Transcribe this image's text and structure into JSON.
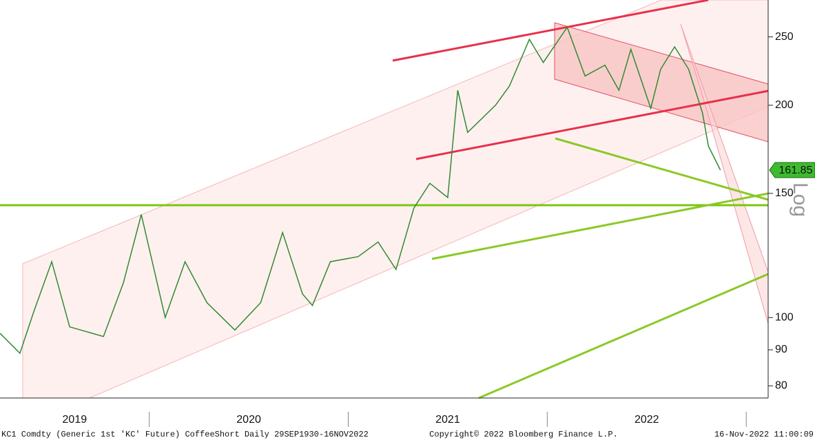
{
  "chart_data": {
    "type": "line",
    "series": [
      {
        "name": "KC1 Comdty",
        "color": "#2f8a2f",
        "x": [
          2019.25,
          2019.35,
          2019.42,
          2019.51,
          2019.6,
          2019.77,
          2019.87,
          2019.96,
          2020.08,
          2020.18,
          2020.29,
          2020.43,
          2020.56,
          2020.67,
          2020.77,
          2020.82,
          2020.91,
          2021.05,
          2021.15,
          2021.24,
          2021.33,
          2021.41,
          2021.5,
          2021.55,
          2021.6,
          2021.74,
          2021.81,
          2021.91,
          2021.98,
          2022.1,
          2022.19,
          2022.29,
          2022.36,
          2022.42,
          2022.52,
          2022.57,
          2022.64,
          2022.71,
          2022.78,
          2022.81,
          2022.87
        ],
        "values": [
          95,
          89,
          102,
          120,
          97,
          94,
          112,
          140,
          100,
          120,
          105,
          96,
          105,
          132,
          108,
          104,
          120,
          122,
          128,
          117,
          143,
          155,
          148,
          210,
          183,
          200,
          213,
          248,
          230,
          258,
          220,
          228,
          210,
          240,
          198,
          225,
          242,
          225,
          195,
          175,
          161.85
        ]
      }
    ],
    "last_price": 161.85,
    "last_price_color": "#3dbb2f",
    "categories": [
      "2019",
      "2020",
      "2021",
      "2022"
    ],
    "xticks": [
      2020,
      2021,
      2022,
      2023
    ],
    "xlim": [
      2019.25,
      2023.11
    ],
    "ylim": [
      76.9,
      282
    ],
    "yticks": [
      80,
      90,
      100,
      150,
      200,
      250
    ],
    "log_scale": true,
    "axis_label": "Log",
    "footer_left": "KC1 Comdty (Generic 1st 'KC' Future) CoffeeShort  Daily 29SEP1930-16NOV2022",
    "footer_center": "Copyright© 2022 Bloomberg Finance L.P.",
    "footer_right": "16-Nov-2022 11:00:09"
  }
}
